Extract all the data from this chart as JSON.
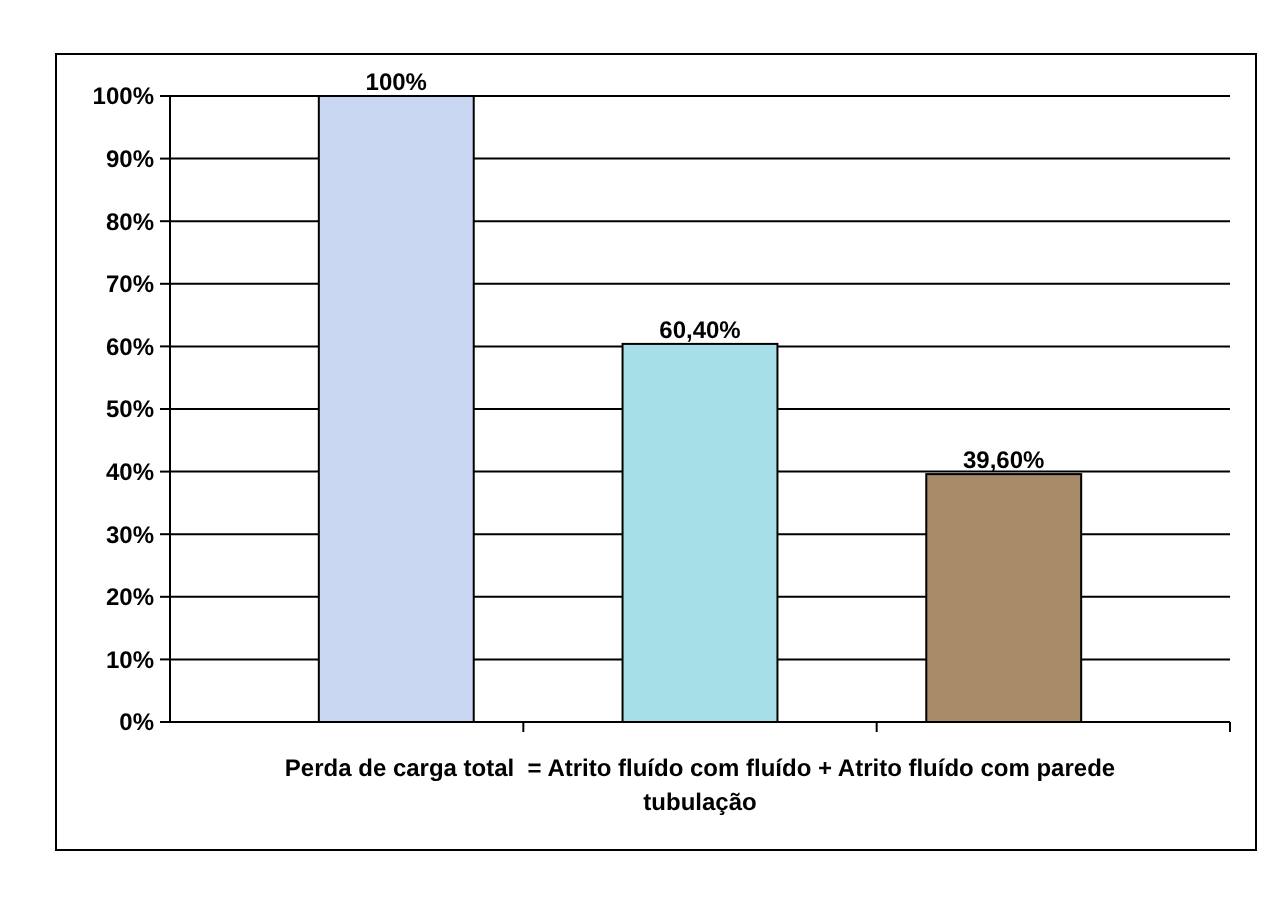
{
  "chart_data": {
    "type": "bar",
    "xlabel": "Perda de carga total  = Atrito fluído com fluído + Atrito fluído com parede tubulação",
    "categories": [
      null,
      null,
      null
    ],
    "values": [
      100,
      60.4,
      39.6
    ],
    "colors": [
      "#c9d6f2",
      "#a6dfe8",
      "#a88b69"
    ],
    "value_labels": [
      "100%",
      "60,40%",
      "39,60%"
    ],
    "ylim": [
      0,
      100
    ],
    "yticks": [
      {
        "value": 0,
        "label": "0%"
      },
      {
        "value": 10,
        "label": "10%"
      },
      {
        "value": 20,
        "label": "20%"
      },
      {
        "value": 30,
        "label": "30%"
      },
      {
        "value": 40,
        "label": "40%"
      },
      {
        "value": 50,
        "label": "50%"
      },
      {
        "value": 60,
        "label": "60%"
      },
      {
        "value": 70,
        "label": "70%"
      },
      {
        "value": 80,
        "label": "80%"
      },
      {
        "value": 90,
        "label": "90%"
      },
      {
        "value": 100,
        "label": "100%"
      }
    ],
    "grid": "y"
  }
}
